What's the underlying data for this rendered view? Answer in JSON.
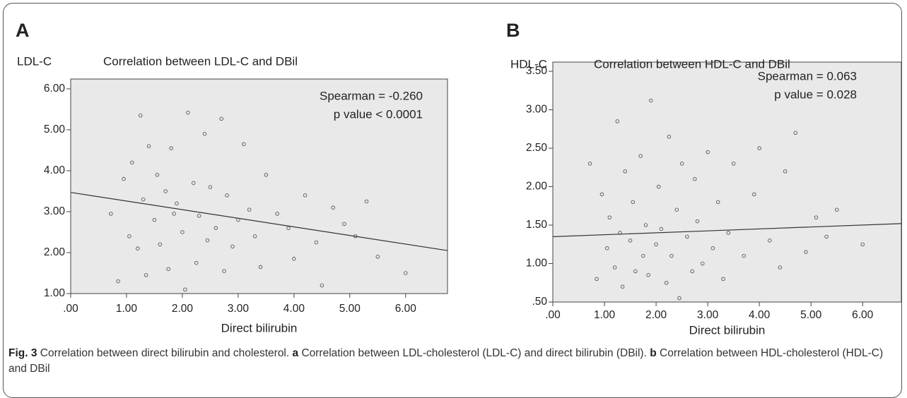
{
  "chart_data": [
    {
      "type": "scatter",
      "panel": "A",
      "title": "Correlation between LDL-C and DBil",
      "ylabel": "LDL-C",
      "xlabel": "Direct bilirubin",
      "annotations": [
        "Spearman = -0.260",
        "p value < 0.0001"
      ],
      "xlim": [
        0,
        6.75
      ],
      "ylim": [
        1,
        6.24
      ],
      "xticks": [
        {
          "value": 0,
          "label": ".00"
        },
        {
          "value": 1,
          "label": "1.00"
        },
        {
          "value": 2,
          "label": "2.00"
        },
        {
          "value": 3,
          "label": "3.00"
        },
        {
          "value": 4,
          "label": "4.00"
        },
        {
          "value": 5,
          "label": "5.00"
        },
        {
          "value": 6,
          "label": "6.00"
        }
      ],
      "yticks": [
        {
          "value": 1,
          "label": "1.00"
        },
        {
          "value": 2,
          "label": "2.00"
        },
        {
          "value": 3,
          "label": "3.00"
        },
        {
          "value": 4,
          "label": "4.00"
        },
        {
          "value": 5,
          "label": "5.00"
        },
        {
          "value": 6,
          "label": "6.00"
        }
      ],
      "color": "#555555",
      "x": [
        0.72,
        0.85,
        0.95,
        1.05,
        1.1,
        1.2,
        1.25,
        1.3,
        1.35,
        1.4,
        1.5,
        1.55,
        1.6,
        1.7,
        1.75,
        1.8,
        1.85,
        1.9,
        2.0,
        2.05,
        2.1,
        2.2,
        2.25,
        2.3,
        2.4,
        2.45,
        2.5,
        2.6,
        2.7,
        2.75,
        2.8,
        2.9,
        3.0,
        3.1,
        3.2,
        3.3,
        3.4,
        3.5,
        3.7,
        3.9,
        4.0,
        4.2,
        4.4,
        4.5,
        4.7,
        4.9,
        5.1,
        5.3,
        5.5,
        6.0
      ],
      "y": [
        2.95,
        1.3,
        3.8,
        2.4,
        4.2,
        2.1,
        5.35,
        3.3,
        1.45,
        4.6,
        2.8,
        3.9,
        2.2,
        3.5,
        1.6,
        4.55,
        2.95,
        3.2,
        2.5,
        1.1,
        5.42,
        3.7,
        1.75,
        2.9,
        4.9,
        2.3,
        3.6,
        2.6,
        5.27,
        1.55,
        3.4,
        2.15,
        2.8,
        4.65,
        3.05,
        2.4,
        1.65,
        3.9,
        2.95,
        2.6,
        1.85,
        3.4,
        2.25,
        1.2,
        3.1,
        2.7,
        2.4,
        3.25,
        1.9,
        1.5
      ],
      "fit": {
        "x": [
          0,
          6.75
        ],
        "y": [
          3.47,
          2.05
        ]
      }
    },
    {
      "type": "scatter",
      "panel": "B",
      "title": "Correlation between HDL-C and DBil",
      "ylabel": "HDL-C",
      "xlabel": "Direct bilirubin",
      "annotations": [
        "Spearman = 0.063",
        "p value = 0.028"
      ],
      "xlim": [
        0,
        6.75
      ],
      "ylim": [
        0.5,
        3.62
      ],
      "xticks": [
        {
          "value": 0,
          "label": ".00"
        },
        {
          "value": 1,
          "label": "1.00"
        },
        {
          "value": 2,
          "label": "2.00"
        },
        {
          "value": 3,
          "label": "3.00"
        },
        {
          "value": 4,
          "label": "4.00"
        },
        {
          "value": 5,
          "label": "5.00"
        },
        {
          "value": 6,
          "label": "6.00"
        }
      ],
      "yticks": [
        {
          "value": 0.5,
          "label": ".50"
        },
        {
          "value": 1,
          "label": "1.00"
        },
        {
          "value": 1.5,
          "label": "1.50"
        },
        {
          "value": 2,
          "label": "2.00"
        },
        {
          "value": 2.5,
          "label": "2.50"
        },
        {
          "value": 3,
          "label": "3.00"
        },
        {
          "value": 3.5,
          "label": "3.50"
        }
      ],
      "color": "#555555",
      "x": [
        0.72,
        0.85,
        0.95,
        1.05,
        1.1,
        1.2,
        1.25,
        1.3,
        1.35,
        1.4,
        1.5,
        1.55,
        1.6,
        1.7,
        1.75,
        1.8,
        1.85,
        1.9,
        2.0,
        2.05,
        2.1,
        2.2,
        2.25,
        2.3,
        2.4,
        2.45,
        2.5,
        2.6,
        2.7,
        2.75,
        2.8,
        2.9,
        3.0,
        3.1,
        3.2,
        3.3,
        3.4,
        3.5,
        3.7,
        3.9,
        4.0,
        4.2,
        4.4,
        4.5,
        4.7,
        4.9,
        5.1,
        5.3,
        5.5,
        6.0
      ],
      "y": [
        2.3,
        0.8,
        1.9,
        1.2,
        1.6,
        0.95,
        2.85,
        1.4,
        0.7,
        2.2,
        1.3,
        1.8,
        0.9,
        2.4,
        1.1,
        1.5,
        0.85,
        3.12,
        1.25,
        2.0,
        1.45,
        0.75,
        2.65,
        1.1,
        1.7,
        0.55,
        2.3,
        1.35,
        0.9,
        2.1,
        1.55,
        1.0,
        2.45,
        1.2,
        1.8,
        0.8,
        1.4,
        2.3,
        1.1,
        1.9,
        2.5,
        1.3,
        0.95,
        2.2,
        2.7,
        1.15,
        1.6,
        1.35,
        1.7,
        1.25
      ],
      "fit": {
        "x": [
          0,
          6.75
        ],
        "y": [
          1.35,
          1.52
        ]
      }
    }
  ],
  "caption": {
    "label": "Fig. 3",
    "text": "Correlation between direct bilirubin and cholesterol.",
    "a_label": "a",
    "a_text": "Correlation between LDL-cholesterol (LDL-C) and direct bilirubin (DBil).",
    "b_label": "b",
    "b_text": "Correlation between HDL-cholesterol (HDL-C) and DBil"
  }
}
